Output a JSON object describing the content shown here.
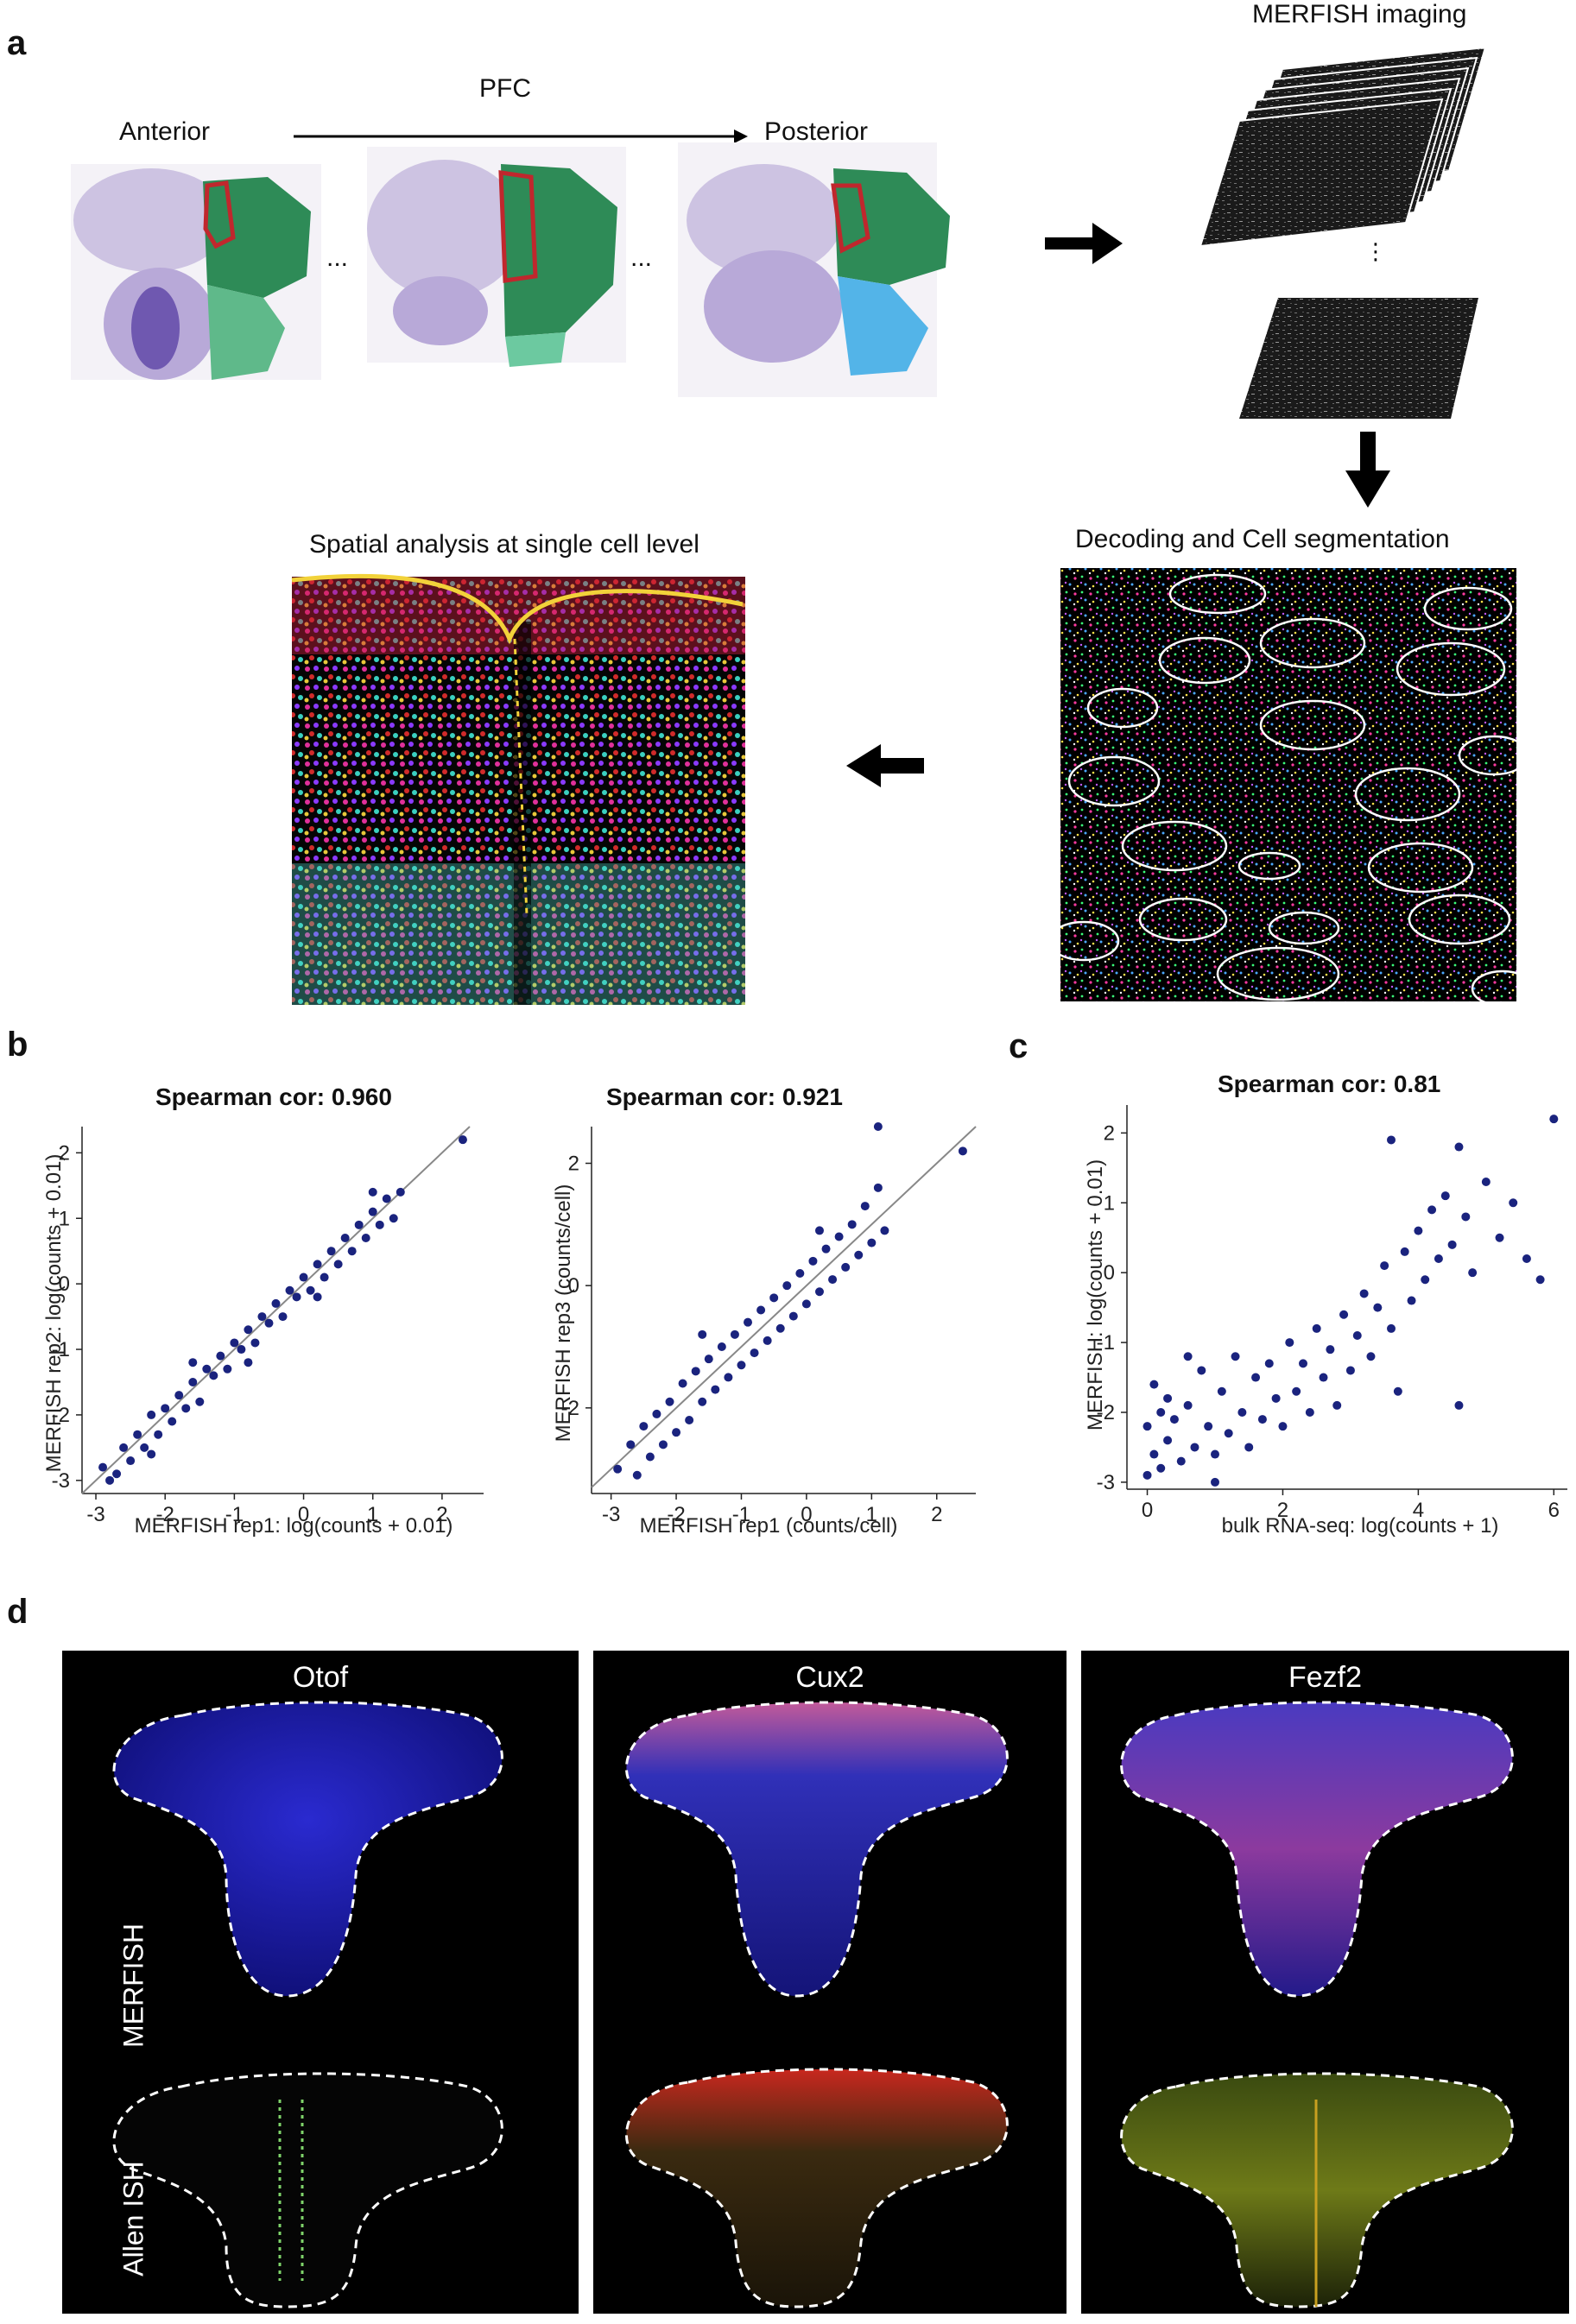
{
  "panel_a": {
    "letter": "a",
    "anterior": "Anterior",
    "pfc": "PFC",
    "posterior": "Posterior",
    "ellipsis": "...",
    "merfish_imaging": "MERFISH imaging",
    "decoding": "Decoding and Cell segmentation",
    "spatial": "Spatial analysis at single cell level",
    "colors": {
      "atlas_green": "#2e8b57",
      "pfc_outline": "#c0272d",
      "tissue_stain": "#9b8ac4"
    }
  },
  "panel_b": {
    "letter": "b",
    "left": {
      "title": "Spearman cor: 0.960",
      "xlabel": "MERFISH rep1: log(counts + 0.01)",
      "ylabel": "MERFISH rep2: log(counts + 0.01)"
    },
    "right": {
      "title": "Spearman cor: 0.921",
      "xlabel": "MERFISH rep1 (counts/cell)",
      "ylabel": "MERFISH rep3 (counts/cell)"
    }
  },
  "panel_c": {
    "letter": "c",
    "title": "Spearman cor: 0.81",
    "xlabel": "bulk RNA-seq: log(counts + 1)",
    "ylabel": "MERFISH: log(counts + 0.01)"
  },
  "panel_d": {
    "letter": "d",
    "genes": [
      "Otof",
      "Cux2",
      "Fezf2"
    ],
    "row_labels": [
      "MERFISH",
      "Allen ISH"
    ]
  },
  "chart_data": [
    {
      "type": "scatter",
      "title": "Spearman cor: 0.960",
      "xlabel": "MERFISH rep1: log(counts + 0.01)",
      "ylabel": "MERFISH rep2: log(counts + 0.01)",
      "xlim": [
        -3.2,
        2.6
      ],
      "ylim": [
        -3.2,
        2.4
      ],
      "xticks": [
        -3,
        -2,
        -1,
        0,
        1,
        2
      ],
      "yticks": [
        -3,
        -2,
        -1,
        0,
        1,
        2
      ],
      "reference_line": "y = x",
      "points": [
        [
          -2.9,
          -2.8
        ],
        [
          -2.7,
          -2.9
        ],
        [
          -2.6,
          -2.5
        ],
        [
          -2.5,
          -2.7
        ],
        [
          -2.4,
          -2.3
        ],
        [
          -2.3,
          -2.5
        ],
        [
          -2.2,
          -2.0
        ],
        [
          -2.1,
          -2.3
        ],
        [
          -2.0,
          -1.9
        ],
        [
          -1.9,
          -2.1
        ],
        [
          -1.8,
          -1.7
        ],
        [
          -1.7,
          -1.9
        ],
        [
          -1.6,
          -1.5
        ],
        [
          -1.5,
          -1.8
        ],
        [
          -1.4,
          -1.3
        ],
        [
          -1.3,
          -1.4
        ],
        [
          -1.2,
          -1.1
        ],
        [
          -1.1,
          -1.3
        ],
        [
          -1.0,
          -0.9
        ],
        [
          -0.9,
          -1.0
        ],
        [
          -0.8,
          -0.7
        ],
        [
          -0.7,
          -0.9
        ],
        [
          -0.6,
          -0.5
        ],
        [
          -0.5,
          -0.6
        ],
        [
          -0.4,
          -0.3
        ],
        [
          -0.3,
          -0.5
        ],
        [
          -0.2,
          -0.1
        ],
        [
          -0.1,
          -0.2
        ],
        [
          0.0,
          0.1
        ],
        [
          0.1,
          -0.1
        ],
        [
          0.2,
          0.3
        ],
        [
          0.3,
          0.1
        ],
        [
          0.4,
          0.5
        ],
        [
          0.5,
          0.3
        ],
        [
          0.6,
          0.7
        ],
        [
          0.7,
          0.5
        ],
        [
          0.8,
          0.9
        ],
        [
          0.9,
          0.7
        ],
        [
          1.0,
          1.1
        ],
        [
          1.1,
          0.9
        ],
        [
          1.2,
          1.3
        ],
        [
          1.3,
          1.0
        ],
        [
          1.4,
          1.4
        ],
        [
          2.3,
          2.2
        ],
        [
          -2.8,
          -3.0
        ],
        [
          -2.2,
          -2.6
        ],
        [
          -1.6,
          -1.2
        ],
        [
          -0.8,
          -1.2
        ],
        [
          0.2,
          -0.2
        ],
        [
          1.0,
          1.4
        ]
      ]
    },
    {
      "type": "scatter",
      "title": "Spearman cor: 0.921",
      "xlabel": "MERFISH rep1 (counts/cell)",
      "ylabel": "MERFISH rep3 (counts/cell)",
      "xlim": [
        -3.3,
        2.6
      ],
      "ylim": [
        -3.4,
        2.6
      ],
      "xticks": [
        -3,
        -2,
        -1,
        0,
        1,
        2
      ],
      "yticks": [
        -2,
        0,
        2
      ],
      "reference_line": "y = x",
      "points": [
        [
          -2.9,
          -3.0
        ],
        [
          -2.7,
          -2.6
        ],
        [
          -2.6,
          -3.1
        ],
        [
          -2.5,
          -2.3
        ],
        [
          -2.4,
          -2.8
        ],
        [
          -2.3,
          -2.1
        ],
        [
          -2.2,
          -2.6
        ],
        [
          -2.1,
          -1.9
        ],
        [
          -2.0,
          -2.4
        ],
        [
          -1.9,
          -1.6
        ],
        [
          -1.8,
          -2.2
        ],
        [
          -1.7,
          -1.4
        ],
        [
          -1.6,
          -1.9
        ],
        [
          -1.5,
          -1.2
        ],
        [
          -1.4,
          -1.7
        ],
        [
          -1.3,
          -1.0
        ],
        [
          -1.2,
          -1.5
        ],
        [
          -1.1,
          -0.8
        ],
        [
          -1.0,
          -1.3
        ],
        [
          -0.9,
          -0.6
        ],
        [
          -0.8,
          -1.1
        ],
        [
          -0.7,
          -0.4
        ],
        [
          -0.6,
          -0.9
        ],
        [
          -0.5,
          -0.2
        ],
        [
          -0.4,
          -0.7
        ],
        [
          -0.3,
          0.0
        ],
        [
          -0.2,
          -0.5
        ],
        [
          -0.1,
          0.2
        ],
        [
          0.0,
          -0.3
        ],
        [
          0.1,
          0.4
        ],
        [
          0.2,
          -0.1
        ],
        [
          0.3,
          0.6
        ],
        [
          0.4,
          0.1
        ],
        [
          0.5,
          0.8
        ],
        [
          0.6,
          0.3
        ],
        [
          0.7,
          1.0
        ],
        [
          0.8,
          0.5
        ],
        [
          0.9,
          1.3
        ],
        [
          1.0,
          0.7
        ],
        [
          1.1,
          1.6
        ],
        [
          1.2,
          0.9
        ],
        [
          1.1,
          2.6
        ],
        [
          2.4,
          2.2
        ],
        [
          -1.6,
          -0.8
        ],
        [
          0.2,
          0.9
        ]
      ]
    },
    {
      "type": "scatter",
      "title": "Spearman cor: 0.81",
      "xlabel": "bulk RNA-seq: log(counts + 1)",
      "ylabel": "MERFISH: log(counts + 0.01)",
      "xlim": [
        -0.3,
        6.2
      ],
      "ylim": [
        -3.1,
        2.4
      ],
      "xticks": [
        0,
        2,
        4,
        6
      ],
      "yticks": [
        -3,
        -2,
        -1,
        0,
        1,
        2
      ],
      "points": [
        [
          0.0,
          -2.9
        ],
        [
          0.0,
          -2.2
        ],
        [
          0.1,
          -1.6
        ],
        [
          0.1,
          -2.6
        ],
        [
          0.2,
          -2.0
        ],
        [
          0.2,
          -2.8
        ],
        [
          0.3,
          -1.8
        ],
        [
          0.3,
          -2.4
        ],
        [
          0.4,
          -2.1
        ],
        [
          0.5,
          -2.7
        ],
        [
          0.6,
          -1.9
        ],
        [
          0.7,
          -2.5
        ],
        [
          0.8,
          -1.4
        ],
        [
          0.9,
          -2.2
        ],
        [
          1.0,
          -2.6
        ],
        [
          1.1,
          -1.7
        ],
        [
          1.2,
          -2.3
        ],
        [
          1.3,
          -1.2
        ],
        [
          1.4,
          -2.0
        ],
        [
          1.5,
          -2.5
        ],
        [
          1.6,
          -1.5
        ],
        [
          1.7,
          -2.1
        ],
        [
          1.8,
          -1.3
        ],
        [
          1.9,
          -1.8
        ],
        [
          2.0,
          -2.2
        ],
        [
          2.1,
          -1.0
        ],
        [
          2.2,
          -1.7
        ],
        [
          2.3,
          -1.3
        ],
        [
          2.4,
          -2.0
        ],
        [
          2.5,
          -0.8
        ],
        [
          2.6,
          -1.5
        ],
        [
          2.7,
          -1.1
        ],
        [
          2.8,
          -1.9
        ],
        [
          2.9,
          -0.6
        ],
        [
          3.0,
          -1.4
        ],
        [
          3.1,
          -0.9
        ],
        [
          3.2,
          -0.3
        ],
        [
          3.3,
          -1.2
        ],
        [
          3.4,
          -0.5
        ],
        [
          3.5,
          0.1
        ],
        [
          3.6,
          -0.8
        ],
        [
          3.7,
          -1.7
        ],
        [
          3.8,
          0.3
        ],
        [
          3.9,
          -0.4
        ],
        [
          4.0,
          0.6
        ],
        [
          4.1,
          -0.1
        ],
        [
          4.2,
          0.9
        ],
        [
          4.3,
          0.2
        ],
        [
          4.4,
          1.1
        ],
        [
          4.5,
          0.4
        ],
        [
          4.6,
          -1.9
        ],
        [
          4.7,
          0.8
        ],
        [
          4.8,
          0.0
        ],
        [
          5.0,
          1.3
        ],
        [
          5.2,
          0.5
        ],
        [
          5.4,
          1.0
        ],
        [
          5.6,
          0.2
        ],
        [
          5.8,
          -0.1
        ],
        [
          6.0,
          2.2
        ],
        [
          3.6,
          1.9
        ],
        [
          4.6,
          1.8
        ],
        [
          0.6,
          -1.2
        ],
        [
          1.0,
          -3.0
        ]
      ]
    }
  ]
}
